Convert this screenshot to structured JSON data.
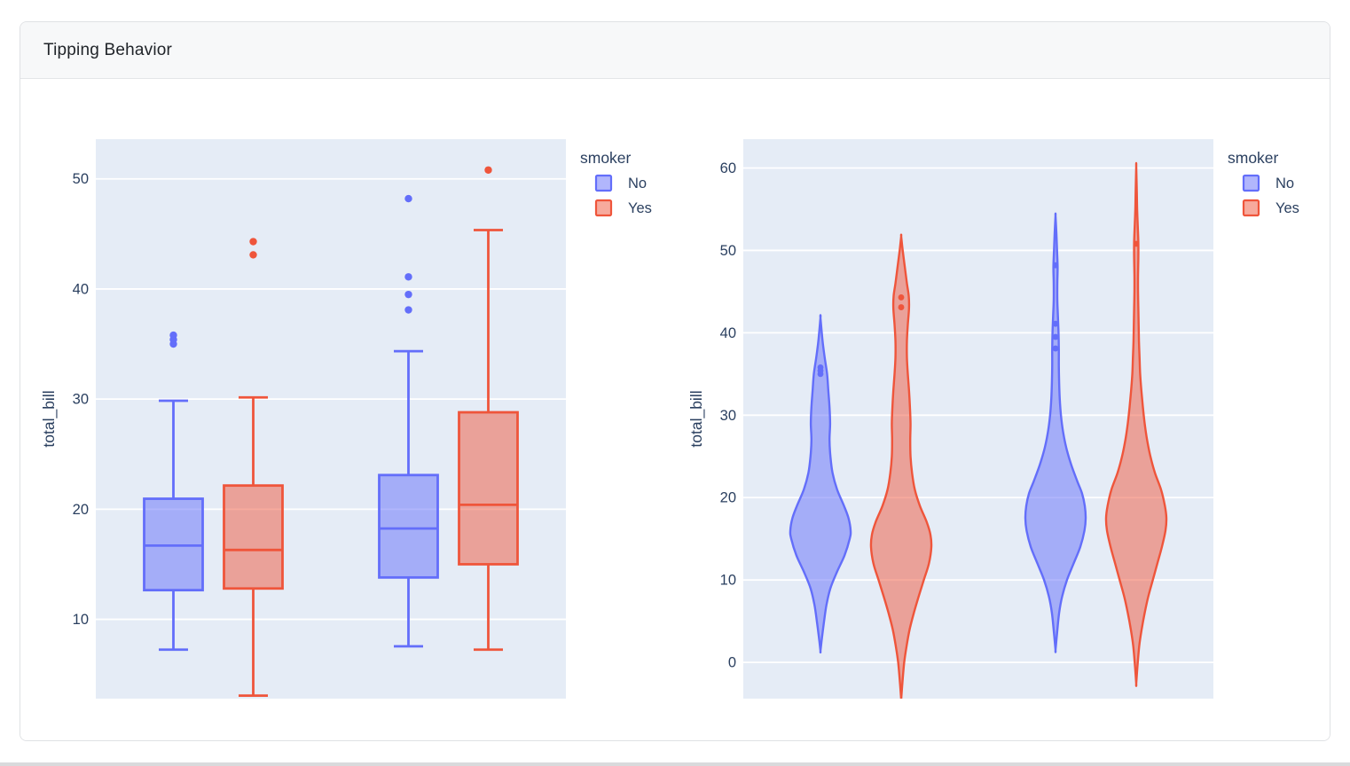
{
  "card": {
    "title": "Tipping Behavior"
  },
  "colors": {
    "series_no": "#636EFA",
    "series_yes": "#EF553B",
    "plot_bg": "#E5ECF6",
    "grid": "#FFFFFF",
    "axis_text": "#2A3F5F"
  },
  "chart_data": [
    {
      "type": "box",
      "ylabel": "total_bill",
      "yticks": [
        10,
        20,
        30,
        40,
        50
      ],
      "yrange": [
        2.8,
        53.6
      ],
      "grid": true,
      "x_tick_labels_visible": false,
      "legend": {
        "title": "smoker",
        "position": "top-right-outside",
        "items": [
          {
            "label": "No",
            "color": "#636EFA"
          },
          {
            "label": "Yes",
            "color": "#EF553B"
          }
        ]
      },
      "groups": [
        {
          "boxes": [
            {
              "series": "No",
              "lowerfence": 7.25,
              "q1": 12.65,
              "median": 16.7,
              "q3": 20.95,
              "upperfence": 29.85,
              "outliers": [
                35.0,
                35.4,
                35.8
              ]
            },
            {
              "series": "Yes",
              "lowerfence": 3.07,
              "q1": 12.8,
              "median": 16.3,
              "q3": 22.15,
              "upperfence": 30.15,
              "outliers": [
                43.1,
                44.3
              ]
            }
          ]
        },
        {
          "boxes": [
            {
              "series": "No",
              "lowerfence": 7.55,
              "q1": 13.8,
              "median": 18.25,
              "q3": 23.1,
              "upperfence": 34.35,
              "outliers": [
                38.1,
                39.5,
                41.1,
                48.2
              ]
            },
            {
              "series": "Yes",
              "lowerfence": 7.25,
              "q1": 15.0,
              "median": 20.4,
              "q3": 28.8,
              "upperfence": 45.35,
              "outliers": [
                50.8
              ]
            }
          ]
        }
      ]
    },
    {
      "type": "violin",
      "ylabel": "total_bill",
      "yticks": [
        0,
        10,
        20,
        30,
        40,
        50,
        60
      ],
      "yrange": [
        -4.4,
        63.5
      ],
      "grid": true,
      "x_tick_labels_visible": false,
      "legend": {
        "title": "smoker",
        "position": "top-right-outside",
        "items": [
          {
            "label": "No",
            "color": "#636EFA"
          },
          {
            "label": "Yes",
            "color": "#EF553B"
          }
        ]
      },
      "groups": [
        {
          "violins": [
            {
              "series": "No",
              "min": 1.4,
              "max": 41.8,
              "points": [
                35.0,
                35.4,
                35.8
              ],
              "profile": [
                [
                  1.4,
                  0
                ],
                [
                  3,
                  0.05
                ],
                [
                  5,
                  0.12
                ],
                [
                  7,
                  0.2
                ],
                [
                  9,
                  0.33
                ],
                [
                  11,
                  0.55
                ],
                [
                  13,
                  0.8
                ],
                [
                  15,
                  0.97
                ],
                [
                  16,
                  1
                ],
                [
                  17.5,
                  0.93
                ],
                [
                  19,
                  0.78
                ],
                [
                  21,
                  0.55
                ],
                [
                  23,
                  0.4
                ],
                [
                  25,
                  0.33
                ],
                [
                  27,
                  0.3
                ],
                [
                  29,
                  0.32
                ],
                [
                  31,
                  0.3
                ],
                [
                  33,
                  0.26
                ],
                [
                  35,
                  0.22
                ],
                [
                  37,
                  0.14
                ],
                [
                  39,
                  0.07
                ],
                [
                  41.8,
                  0
                ]
              ]
            },
            {
              "series": "Yes",
              "min": -4.5,
              "max": 51.7,
              "points": [
                43.1,
                44.3
              ],
              "profile": [
                [
                  -4.5,
                  0
                ],
                [
                  -2.5,
                  0.04
                ],
                [
                  0,
                  0.1
                ],
                [
                  2,
                  0.18
                ],
                [
                  4,
                  0.28
                ],
                [
                  6,
                  0.42
                ],
                [
                  8,
                  0.58
                ],
                [
                  10,
                  0.75
                ],
                [
                  12,
                  0.92
                ],
                [
                  14,
                  1
                ],
                [
                  15.5,
                  0.97
                ],
                [
                  17,
                  0.85
                ],
                [
                  19,
                  0.62
                ],
                [
                  21,
                  0.45
                ],
                [
                  23,
                  0.36
                ],
                [
                  25,
                  0.31
                ],
                [
                  27,
                  0.3
                ],
                [
                  29,
                  0.31
                ],
                [
                  31,
                  0.29
                ],
                [
                  33,
                  0.26
                ],
                [
                  35,
                  0.22
                ],
                [
                  37,
                  0.19
                ],
                [
                  39,
                  0.19
                ],
                [
                  41,
                  0.22
                ],
                [
                  43,
                  0.26
                ],
                [
                  44.5,
                  0.25
                ],
                [
                  46,
                  0.19
                ],
                [
                  48,
                  0.12
                ],
                [
                  50,
                  0.05
                ],
                [
                  51.7,
                  0
                ]
              ]
            }
          ]
        },
        {
          "violins": [
            {
              "series": "No",
              "min": 1.5,
              "max": 54.2,
              "points": [
                38.1,
                39.5,
                41.1,
                48.2
              ],
              "profile": [
                [
                  1.5,
                  0
                ],
                [
                  3.5,
                  0.05
                ],
                [
                  6,
                  0.12
                ],
                [
                  8,
                  0.22
                ],
                [
                  10,
                  0.38
                ],
                [
                  12,
                  0.6
                ],
                [
                  14,
                  0.82
                ],
                [
                  16,
                  0.96
                ],
                [
                  17.5,
                  1
                ],
                [
                  19,
                  0.97
                ],
                [
                  20.5,
                  0.88
                ],
                [
                  22,
                  0.72
                ],
                [
                  24,
                  0.52
                ],
                [
                  26,
                  0.36
                ],
                [
                  28,
                  0.25
                ],
                [
                  30,
                  0.18
                ],
                [
                  32,
                  0.14
                ],
                [
                  34,
                  0.12
                ],
                [
                  36,
                  0.11
                ],
                [
                  38,
                  0.11
                ],
                [
                  40,
                  0.1
                ],
                [
                  42,
                  0.08
                ],
                [
                  44,
                  0.06
                ],
                [
                  46,
                  0.06
                ],
                [
                  48,
                  0.07
                ],
                [
                  50,
                  0.05
                ],
                [
                  52,
                  0.03
                ],
                [
                  54.2,
                  0
                ]
              ]
            },
            {
              "series": "Yes",
              "min": -2.6,
              "max": 60.2,
              "points": [
                50.8
              ],
              "profile": [
                [
                  -2.6,
                  0
                ],
                [
                  -0.5,
                  0.04
                ],
                [
                  2,
                  0.1
                ],
                [
                  4,
                  0.18
                ],
                [
                  6,
                  0.28
                ],
                [
                  8,
                  0.4
                ],
                [
                  10,
                  0.55
                ],
                [
                  12,
                  0.7
                ],
                [
                  14,
                  0.85
                ],
                [
                  16,
                  0.97
                ],
                [
                  17.5,
                  1
                ],
                [
                  19,
                  0.95
                ],
                [
                  21,
                  0.82
                ],
                [
                  23,
                  0.62
                ],
                [
                  25,
                  0.47
                ],
                [
                  27,
                  0.36
                ],
                [
                  29,
                  0.28
                ],
                [
                  31,
                  0.22
                ],
                [
                  33,
                  0.17
                ],
                [
                  35,
                  0.13
                ],
                [
                  37,
                  0.11
                ],
                [
                  39,
                  0.09
                ],
                [
                  41,
                  0.08
                ],
                [
                  43,
                  0.07
                ],
                [
                  45,
                  0.06
                ],
                [
                  47,
                  0.06
                ],
                [
                  49,
                  0.07
                ],
                [
                  51,
                  0.07
                ],
                [
                  53,
                  0.05
                ],
                [
                  55,
                  0.03
                ],
                [
                  57,
                  0.02
                ],
                [
                  60.2,
                  0
                ]
              ]
            }
          ]
        }
      ]
    }
  ]
}
